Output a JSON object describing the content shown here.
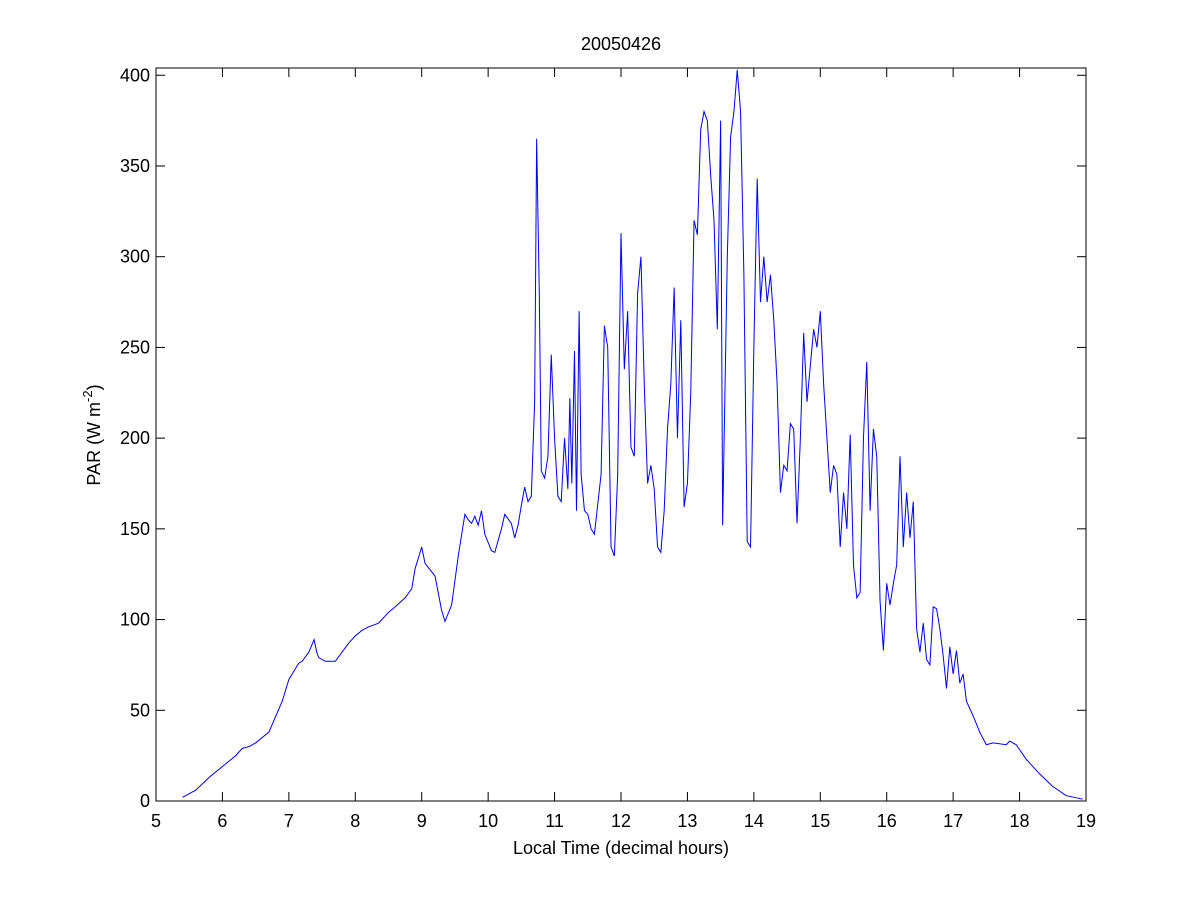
{
  "chart_data": {
    "type": "line",
    "title": "20050426",
    "x_label": "Local Time (decimal hours)",
    "y_label": {
      "text": "PAR (W m",
      "superscript": "-2",
      "suffix": ")"
    },
    "color": "#0000ff",
    "xlim": [
      5,
      19
    ],
    "xticks": [
      5,
      6,
      7,
      8,
      9,
      10,
      11,
      12,
      13,
      14,
      15,
      16,
      17,
      18,
      19
    ],
    "ylim": [
      0,
      404
    ],
    "yticks": [
      0,
      50,
      100,
      150,
      200,
      250,
      300,
      350,
      400
    ],
    "x": [
      5.4,
      5.6,
      5.8,
      6.0,
      6.2,
      6.3,
      6.4,
      6.5,
      6.7,
      6.9,
      7.0,
      7.05,
      7.1,
      7.15,
      7.2,
      7.3,
      7.38,
      7.42,
      7.45,
      7.55,
      7.7,
      7.8,
      7.9,
      8.0,
      8.1,
      8.2,
      8.35,
      8.5,
      8.6,
      8.75,
      8.85,
      8.9,
      9.0,
      9.05,
      9.2,
      9.3,
      9.35,
      9.45,
      9.55,
      9.65,
      9.7,
      9.75,
      9.8,
      9.85,
      9.9,
      9.95,
      10.05,
      10.1,
      10.2,
      10.25,
      10.35,
      10.4,
      10.45,
      10.5,
      10.55,
      10.6,
      10.65,
      10.7,
      10.73,
      10.77,
      10.8,
      10.85,
      10.9,
      10.95,
      11.0,
      11.05,
      11.1,
      11.15,
      11.2,
      11.23,
      11.26,
      11.3,
      11.33,
      11.37,
      11.4,
      11.45,
      11.5,
      11.55,
      11.6,
      11.7,
      11.75,
      11.8,
      11.85,
      11.9,
      11.95,
      12.0,
      12.05,
      12.1,
      12.15,
      12.2,
      12.25,
      12.3,
      12.35,
      12.4,
      12.45,
      12.5,
      12.55,
      12.6,
      12.65,
      12.7,
      12.75,
      12.8,
      12.85,
      12.9,
      12.95,
      13.0,
      13.05,
      13.1,
      13.15,
      13.2,
      13.25,
      13.3,
      13.35,
      13.4,
      13.45,
      13.5,
      13.53,
      13.6,
      13.65,
      13.7,
      13.75,
      13.8,
      13.85,
      13.9,
      13.95,
      14.0,
      14.05,
      14.1,
      14.15,
      14.2,
      14.25,
      14.3,
      14.35,
      14.4,
      14.45,
      14.5,
      14.55,
      14.6,
      14.65,
      14.7,
      14.75,
      14.8,
      14.85,
      14.9,
      14.95,
      15.0,
      15.05,
      15.1,
      15.15,
      15.2,
      15.25,
      15.3,
      15.35,
      15.4,
      15.45,
      15.5,
      15.55,
      15.6,
      15.65,
      15.7,
      15.75,
      15.8,
      15.85,
      15.9,
      15.95,
      16.0,
      16.05,
      16.1,
      16.15,
      16.2,
      16.25,
      16.3,
      16.35,
      16.4,
      16.45,
      16.5,
      16.55,
      16.6,
      16.65,
      16.7,
      16.75,
      16.8,
      16.85,
      16.9,
      16.95,
      17.0,
      17.05,
      17.1,
      17.15,
      17.2,
      17.3,
      17.4,
      17.5,
      17.6,
      17.8,
      17.85,
      17.95,
      18.1,
      18.3,
      18.5,
      18.7,
      18.95
    ],
    "values": [
      2,
      6,
      13,
      19,
      25,
      29,
      30,
      32,
      38,
      55,
      67,
      70,
      73,
      76,
      77,
      82,
      89,
      82,
      79,
      77,
      77,
      82,
      87,
      91,
      94,
      96,
      98,
      104,
      107,
      112,
      117,
      128,
      140,
      131,
      124,
      105,
      99,
      108,
      135,
      158,
      155,
      153,
      157,
      152,
      160,
      147,
      138,
      137,
      150,
      158,
      153,
      145,
      152,
      163,
      173,
      165,
      168,
      220,
      365,
      280,
      182,
      178,
      190,
      246,
      200,
      168,
      165,
      200,
      172,
      222,
      175,
      248,
      160,
      270,
      180,
      160,
      158,
      150,
      147,
      180,
      262,
      250,
      140,
      135,
      180,
      313,
      238,
      270,
      195,
      190,
      280,
      300,
      230,
      175,
      185,
      172,
      140,
      137,
      160,
      205,
      230,
      283,
      200,
      265,
      162,
      175,
      225,
      320,
      312,
      370,
      380,
      375,
      345,
      320,
      260,
      375,
      152,
      300,
      366,
      380,
      403,
      380,
      290,
      143,
      140,
      250,
      343,
      275,
      300,
      275,
      290,
      265,
      230,
      170,
      185,
      182,
      208,
      205,
      153,
      200,
      258,
      220,
      240,
      260,
      250,
      270,
      230,
      200,
      170,
      185,
      180,
      140,
      170,
      150,
      202,
      130,
      112,
      115,
      200,
      242,
      160,
      205,
      190,
      110,
      83,
      120,
      108,
      120,
      130,
      190,
      140,
      170,
      145,
      165,
      95,
      82,
      98,
      78,
      75,
      107,
      106,
      95,
      80,
      62,
      85,
      70,
      83,
      65,
      70,
      55,
      47,
      38,
      31,
      32,
      31,
      33,
      31,
      23,
      15,
      8,
      3,
      1
    ]
  }
}
